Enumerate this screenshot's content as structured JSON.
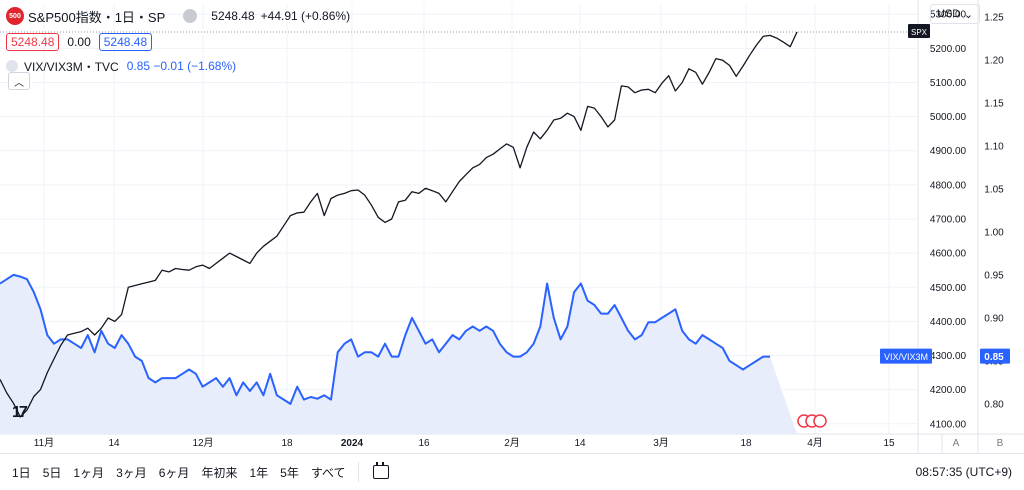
{
  "legend": {
    "logo": "500",
    "title": "S&P500指数・1日・SP",
    "price": "5248.48",
    "change": "+44.91 (+0.86%)",
    "bid": "5248.48",
    "spread": "0.00",
    "ask": "5248.48",
    "compare_name": "VIX/VIX3M・TVC",
    "compare_values": "0.85  −0.01 (−1.68%)"
  },
  "toolbar": {
    "currency": "USD",
    "currency_caret": "⌄",
    "collapse_icon": "chevron-up-icon",
    "range_buttons": [
      "1日",
      "5日",
      "1ヶ月",
      "3ヶ月",
      "6ヶ月",
      "年初来",
      "1年",
      "5年",
      "すべて"
    ],
    "clock": "08:57:35 (UTC+9)",
    "tv_logo": "17"
  },
  "colors": {
    "spx": "#131722",
    "vix": "#2962ff",
    "vix_fill": "#e8edfb",
    "grid": "#f0f3fa"
  },
  "chart_data": {
    "type": "line",
    "x_ticks": [
      "11月",
      "14",
      "12月",
      "18",
      "2024",
      "16",
      "2月",
      "14",
      "3月",
      "18",
      "4月",
      "15"
    ],
    "series": [
      {
        "name": "SPX",
        "axis": "left",
        "last_label": "SPX",
        "values": [
          4230,
          4190,
          4160,
          4120,
          4140,
          4180,
          4200,
          4250,
          4290,
          4330,
          4360,
          4365,
          4370,
          4380,
          4360,
          4380,
          4410,
          4400,
          4420,
          4500,
          4505,
          4510,
          4515,
          4520,
          4550,
          4545,
          4555,
          4552,
          4550,
          4560,
          4565,
          4555,
          4570,
          4585,
          4600,
          4590,
          4580,
          4570,
          4600,
          4620,
          4635,
          4650,
          4680,
          4710,
          4718,
          4720,
          4750,
          4775,
          4710,
          4760,
          4770,
          4775,
          4783,
          4785,
          4770,
          4740,
          4705,
          4690,
          4700,
          4750,
          4755,
          4780,
          4775,
          4790,
          4783,
          4775,
          4750,
          4780,
          4810,
          4830,
          4850,
          4860,
          4880,
          4890,
          4905,
          4920,
          4910,
          4850,
          4910,
          4955,
          4935,
          4960,
          4990,
          4995,
          5010,
          5000,
          4960,
          5030,
          5025,
          5000,
          4970,
          4990,
          5090,
          5087,
          5070,
          5078,
          5080,
          5070,
          5098,
          5120,
          5075,
          5100,
          5140,
          5130,
          5095,
          5130,
          5170,
          5165,
          5150,
          5118,
          5148,
          5180,
          5210,
          5235,
          5238,
          5230,
          5218,
          5205,
          5248
        ],
        "last_value": "5248.48"
      },
      {
        "name": "VIX/VIX3M",
        "axis": "right",
        "last_label": "VIX/VIX3M",
        "values": [
          0.94,
          0.945,
          0.95,
          0.948,
          0.945,
          0.93,
          0.91,
          0.88,
          0.87,
          0.875,
          0.875,
          0.87,
          0.865,
          0.88,
          0.86,
          0.885,
          0.87,
          0.865,
          0.88,
          0.87,
          0.855,
          0.85,
          0.83,
          0.825,
          0.83,
          0.83,
          0.83,
          0.835,
          0.84,
          0.835,
          0.82,
          0.825,
          0.83,
          0.82,
          0.83,
          0.81,
          0.825,
          0.815,
          0.825,
          0.81,
          0.835,
          0.81,
          0.805,
          0.8,
          0.82,
          0.805,
          0.808,
          0.806,
          0.81,
          0.805,
          0.86,
          0.87,
          0.875,
          0.855,
          0.86,
          0.86,
          0.855,
          0.87,
          0.855,
          0.855,
          0.88,
          0.9,
          0.885,
          0.87,
          0.875,
          0.86,
          0.87,
          0.88,
          0.875,
          0.885,
          0.89,
          0.885,
          0.89,
          0.885,
          0.87,
          0.86,
          0.855,
          0.855,
          0.86,
          0.87,
          0.89,
          0.94,
          0.9,
          0.875,
          0.89,
          0.93,
          0.94,
          0.92,
          0.915,
          0.905,
          0.905,
          0.915,
          0.9,
          0.885,
          0.875,
          0.88,
          0.895,
          0.895,
          0.9,
          0.905,
          0.91,
          0.885,
          0.875,
          0.87,
          0.88,
          0.875,
          0.87,
          0.865,
          0.85,
          0.845,
          0.84,
          0.845,
          0.85,
          0.855,
          0.855
        ],
        "last_value": "0.85"
      }
    ],
    "y_left": {
      "ticks": [
        "5300.00",
        "5200.00",
        "5100.00",
        "5000.00",
        "4900.00",
        "4800.00",
        "4700.00",
        "4600.00",
        "4500.00",
        "4400.00",
        "4300.00",
        "4200.00",
        "4100.00"
      ],
      "range": [
        4070,
        5330
      ]
    },
    "y_right": {
      "ticks": [
        "1.25",
        "1.20",
        "1.15",
        "1.10",
        "1.05",
        "1.00",
        "0.95",
        "0.90",
        "0.85",
        "0.80"
      ],
      "range": [
        0.765,
        1.265
      ]
    },
    "bottom_labels": [
      "A",
      "B"
    ],
    "grid": true
  }
}
